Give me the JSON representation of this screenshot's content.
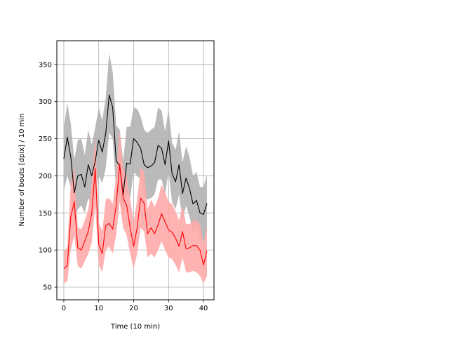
{
  "chart_data": {
    "type": "area",
    "title": "",
    "xlabel": "Time (10 min)",
    "ylabel": "Number of bouts [dpix]  / 10 min",
    "xlim": [
      -2,
      43
    ],
    "ylim": [
      33,
      382
    ],
    "grid": true,
    "xticks": [
      0,
      10,
      20,
      30,
      40
    ],
    "yticks": [
      50,
      100,
      150,
      200,
      250,
      300,
      350
    ],
    "x": [
      0,
      1,
      2,
      3,
      4,
      5,
      6,
      7,
      8,
      9,
      10,
      11,
      12,
      13,
      14,
      15,
      16,
      17,
      18,
      19,
      20,
      21,
      22,
      23,
      24,
      25,
      26,
      27,
      28,
      29,
      30,
      31,
      32,
      33,
      34,
      35,
      36,
      37,
      38,
      39,
      40,
      41
    ],
    "series": [
      {
        "color": "#000000",
        "band_color": "#b3b3b3",
        "values": [
          223,
          252,
          225,
          177,
          200,
          202,
          185,
          215,
          200,
          220,
          248,
          232,
          257,
          309,
          292,
          220,
          214,
          175,
          217,
          216,
          250,
          245,
          237,
          215,
          211,
          213,
          218,
          241,
          237,
          215,
          247,
          203,
          192,
          215,
          176,
          197,
          183,
          162,
          167,
          150,
          148,
          163
        ],
        "lower": [
          180,
          200,
          185,
          140,
          155,
          160,
          150,
          170,
          160,
          175,
          200,
          190,
          210,
          258,
          250,
          180,
          175,
          140,
          175,
          170,
          205,
          200,
          195,
          172,
          168,
          170,
          175,
          195,
          195,
          175,
          205,
          165,
          155,
          175,
          140,
          160,
          145,
          125,
          130,
          115,
          110,
          125
        ],
        "upper": [
          265,
          298,
          270,
          222,
          248,
          250,
          228,
          262,
          242,
          265,
          292,
          275,
          305,
          365,
          340,
          268,
          262,
          220,
          266,
          266,
          292,
          290,
          280,
          262,
          258,
          262,
          266,
          292,
          288,
          260,
          290,
          245,
          235,
          260,
          218,
          240,
          225,
          200,
          205,
          185,
          185,
          202
        ]
      },
      {
        "color": "#ff0000",
        "band_color": "#ffaaaa",
        "values": [
          75,
          79,
          145,
          165,
          103,
          100,
          112,
          125,
          150,
          210,
          108,
          95,
          133,
          136,
          128,
          160,
          215,
          170,
          160,
          130,
          105,
          130,
          170,
          163,
          122,
          130,
          122,
          134,
          149,
          138,
          127,
          124,
          116,
          105,
          125,
          102,
          103,
          106,
          106,
          100,
          80,
          99
        ],
        "lower": [
          55,
          58,
          100,
          120,
          78,
          75,
          85,
          95,
          110,
          160,
          80,
          70,
          100,
          105,
          95,
          120,
          165,
          130,
          120,
          95,
          75,
          95,
          130,
          125,
          90,
          95,
          90,
          100,
          112,
          100,
          90,
          88,
          80,
          70,
          90,
          70,
          70,
          72,
          70,
          65,
          55,
          65
        ],
        "upper": [
          98,
          104,
          190,
          212,
          130,
          128,
          140,
          155,
          190,
          255,
          138,
          125,
          168,
          170,
          162,
          200,
          262,
          210,
          200,
          168,
          138,
          168,
          212,
          205,
          155,
          168,
          158,
          170,
          188,
          178,
          165,
          162,
          152,
          140,
          160,
          135,
          135,
          140,
          140,
          135,
          108,
          132
        ]
      }
    ]
  }
}
